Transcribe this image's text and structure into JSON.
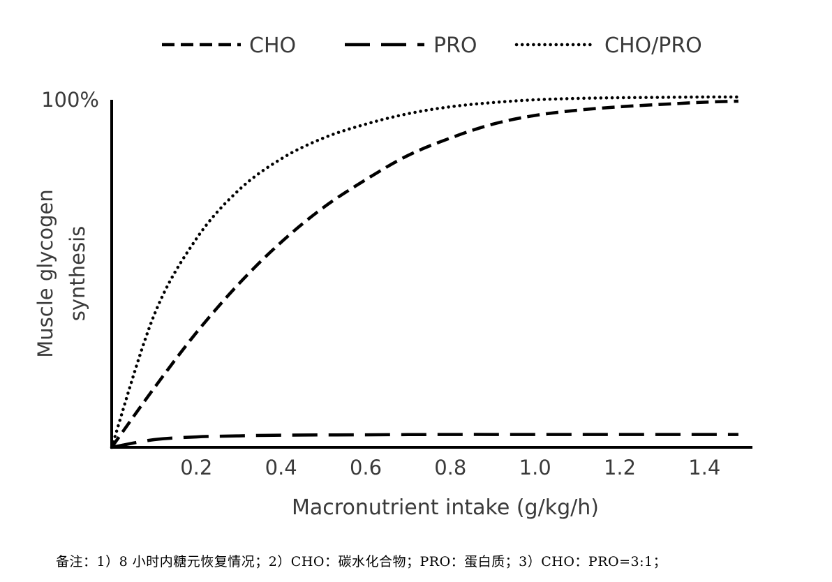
{
  "chart_data": {
    "type": "line",
    "ylabel_line1": "Muscle glycogen",
    "ylabel_line2": "synthesis",
    "xlabel": "Macronutrient intake (g/kg/h)",
    "ytick_label": "100%",
    "xticks": [
      0.2,
      0.4,
      0.6,
      0.8,
      1.0,
      1.2,
      1.4
    ],
    "xtick_labels": [
      "0.2",
      "0.4",
      "0.6",
      "0.8",
      "1.0",
      "1.2",
      "1.4"
    ],
    "xlim": [
      0,
      1.5
    ],
    "ylim": [
      0,
      100
    ],
    "legend_position": "top",
    "series": [
      {
        "name": "CHO",
        "style": "short-dash",
        "x": [
          0,
          0.1,
          0.2,
          0.3,
          0.4,
          0.5,
          0.6,
          0.7,
          0.8,
          0.9,
          1.0,
          1.1,
          1.2,
          1.3,
          1.4,
          1.48
        ],
        "y": [
          0,
          17,
          33,
          47,
          59,
          69,
          77,
          84,
          89,
          93,
          95.5,
          97,
          98,
          98.7,
          99.3,
          99.6
        ]
      },
      {
        "name": "PRO",
        "style": "long-dash",
        "x": [
          0,
          0.1,
          0.2,
          0.3,
          0.4,
          0.6,
          0.8,
          1.0,
          1.2,
          1.4,
          1.48
        ],
        "y": [
          0,
          2.2,
          3.0,
          3.3,
          3.5,
          3.6,
          3.7,
          3.7,
          3.7,
          3.7,
          3.7
        ]
      },
      {
        "name": "CHO/PRO",
        "style": "dotted",
        "x": [
          0,
          0.1,
          0.2,
          0.3,
          0.4,
          0.5,
          0.6,
          0.7,
          0.8,
          0.9,
          1.0,
          1.1,
          1.2,
          1.3,
          1.4,
          1.48
        ],
        "y": [
          0,
          38,
          60,
          74,
          83,
          89,
          93,
          96,
          98,
          99.2,
          100,
          100.4,
          100.6,
          100.7,
          100.8,
          100.8
        ]
      }
    ]
  },
  "footnote": "备注：1）8 小时内糖元恢复情况；2）CHO：碳水化合物；PRO：蛋白质；3）CHO：PRO=3:1；"
}
